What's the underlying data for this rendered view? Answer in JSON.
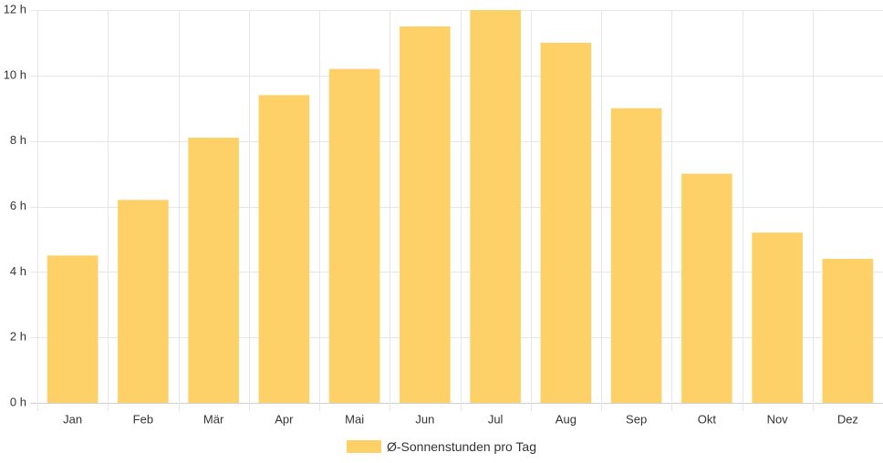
{
  "chart_data": {
    "type": "bar",
    "categories": [
      "Jan",
      "Feb",
      "Mär",
      "Apr",
      "Mai",
      "Jun",
      "Jul",
      "Aug",
      "Sep",
      "Okt",
      "Nov",
      "Dez"
    ],
    "series": [
      {
        "name": "Ø-Sonnenstunden pro Tag",
        "values": [
          4.5,
          6.2,
          8.1,
          9.4,
          10.2,
          11.5,
          12.0,
          11.0,
          9.0,
          7.0,
          5.2,
          4.4
        ],
        "color": "#fdd168"
      }
    ],
    "ylim": [
      0,
      12
    ],
    "yticks": [
      "0 h",
      "2 h",
      "4 h",
      "6 h",
      "8 h",
      "10 h",
      "12 h"
    ],
    "grid": true,
    "legend_position": "bottom"
  }
}
